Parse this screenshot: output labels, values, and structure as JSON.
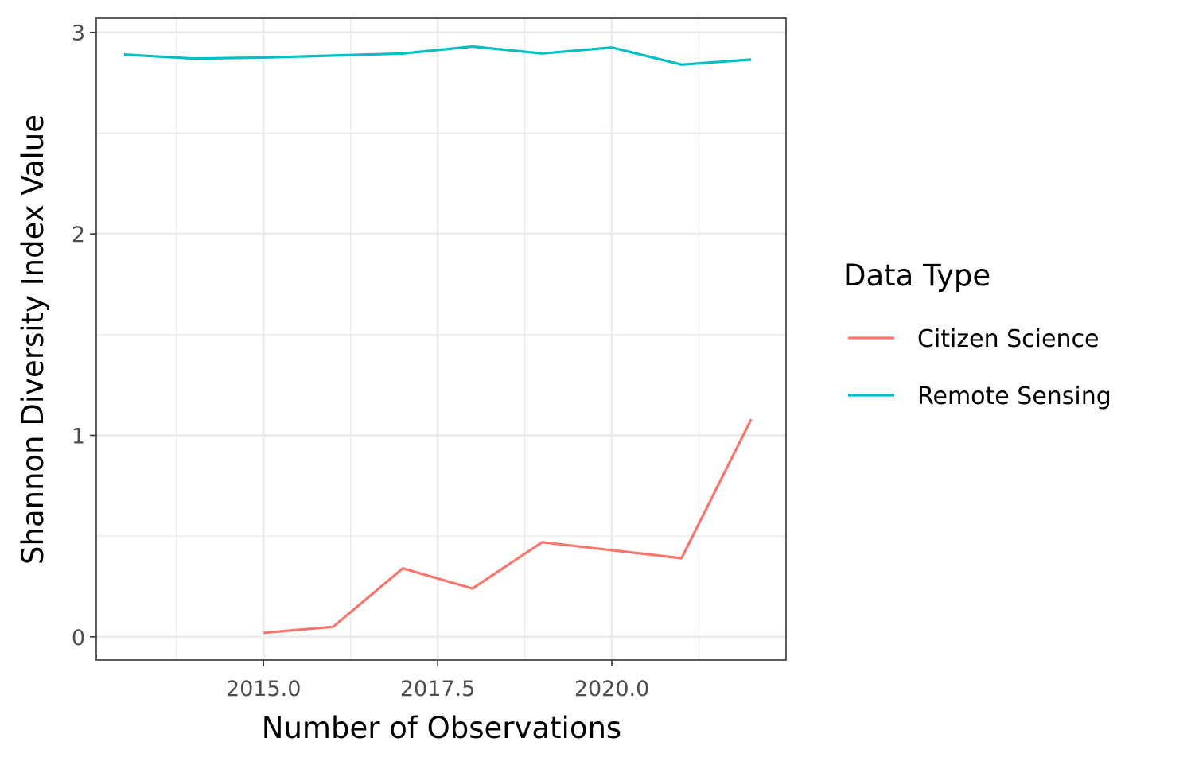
{
  "chart_data": {
    "type": "line",
    "xlabel": "Number of Observations",
    "ylabel": "Shannon Diversity Index Value",
    "xlim": [
      2012.6,
      2022.5
    ],
    "ylim": [
      -0.115,
      3.07
    ],
    "x_ticks": [
      2015.0,
      2017.5,
      2020.0
    ],
    "x_tick_labels": [
      "2015.0",
      "2017.5",
      "2020.0"
    ],
    "y_ticks": [
      0,
      1,
      2,
      3
    ],
    "y_tick_labels": [
      "0",
      "1",
      "2",
      "3"
    ],
    "grid": true,
    "legend": {
      "title": "Data Type",
      "position": "right"
    },
    "series": [
      {
        "name": "Citizen Science",
        "color": "#F8766D",
        "x": [
          2015,
          2016,
          2017,
          2018,
          2019,
          2020,
          2021,
          2022
        ],
        "y": [
          0.02,
          0.05,
          0.34,
          0.24,
          0.47,
          0.43,
          0.39,
          1.08
        ]
      },
      {
        "name": "Remote Sensing",
        "color": "#00BFC4",
        "x": [
          2013,
          2014,
          2015,
          2016,
          2017,
          2018,
          2019,
          2020,
          2021,
          2022
        ],
        "y": [
          2.89,
          2.87,
          2.875,
          2.885,
          2.895,
          2.93,
          2.895,
          2.925,
          2.84,
          2.865
        ]
      }
    ]
  }
}
